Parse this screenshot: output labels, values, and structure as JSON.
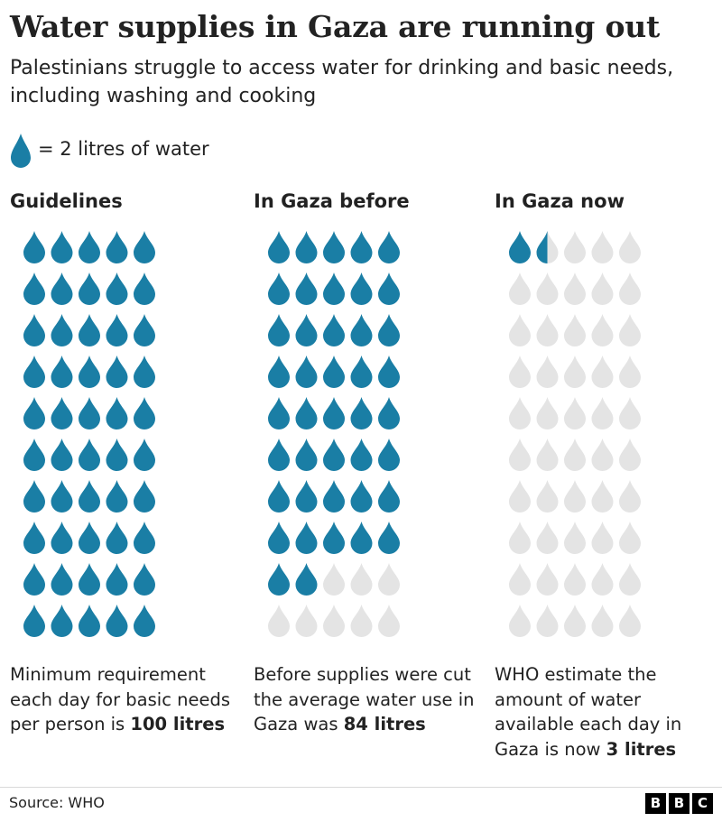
{
  "title": "Water supplies in Gaza are running out",
  "subtitle": "Palestinians struggle to access water for drinking and basic needs, including washing and cooking",
  "legend": {
    "icon": "water-drop-icon",
    "text": "= 2 litres of water"
  },
  "colors": {
    "filled": "#1a7ea5",
    "empty": "#e4e4e4",
    "text": "#222222"
  },
  "chart_data": {
    "type": "pictograph",
    "unit_litres_per_icon": 2,
    "grid": {
      "columns": 5,
      "rows": 10
    },
    "series": [
      {
        "name": "Guidelines",
        "litres": 100,
        "note_text": "Minimum requirement each day for basic needs per person is",
        "note_value": "100 litres"
      },
      {
        "name": "In Gaza before",
        "litres": 84,
        "note_text": "Before supplies were cut the average water use in Gaza was",
        "note_value": "84 litres"
      },
      {
        "name": "In Gaza now",
        "litres": 3,
        "note_text": "WHO estimate the amount of water available each day in Gaza is now",
        "note_value": "3 litres"
      }
    ]
  },
  "footer": {
    "source": "Source: WHO",
    "logo_letters": [
      "B",
      "B",
      "C"
    ]
  }
}
